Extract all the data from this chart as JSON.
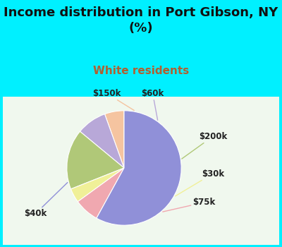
{
  "title": "Income distribution in Port Gibson, NY\n(%)",
  "subtitle": "White residents",
  "title_color": "#111111",
  "subtitle_color": "#b06030",
  "bg_cyan": "#00f0ff",
  "chart_bg_colors": [
    "#e8f5e0",
    "#ffffff"
  ],
  "labels": [
    "$150k",
    "$60k",
    "$200k",
    "$30k",
    "$75k",
    "$40k"
  ],
  "values": [
    5.5,
    8.5,
    17.0,
    4.0,
    7.0,
    58.0
  ],
  "colors": [
    "#f5c4a0",
    "#b8a8d8",
    "#b0c878",
    "#f0f098",
    "#f0a8b0",
    "#9090d8"
  ],
  "label_colors": [
    "#f5c4a0",
    "#b8a8d8",
    "#b0c878",
    "#f0f098",
    "#f0a8b0",
    "#9090d8"
  ],
  "label_fontsize": 8.5,
  "title_fontsize": 13,
  "subtitle_fontsize": 11,
  "startangle": 90
}
